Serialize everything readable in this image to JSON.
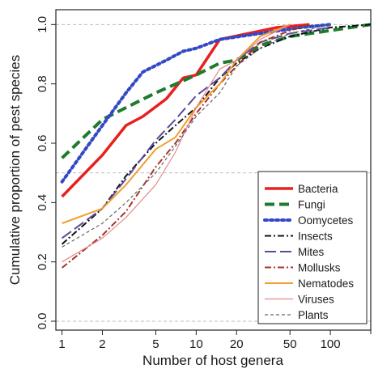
{
  "chart_data": {
    "type": "line",
    "xlabel": "Number of host genera",
    "ylabel": "Cumulative proportion of pest species",
    "x_scale": "log",
    "xlim": [
      0.9,
      200
    ],
    "ylim": [
      -0.03,
      1.05
    ],
    "x_ticks": [
      1,
      2,
      5,
      10,
      20,
      50,
      100
    ],
    "x_tick_labels": [
      "1",
      "2",
      "5",
      "10",
      "20",
      "50",
      "100"
    ],
    "y_ticks": [
      0.0,
      0.2,
      0.4,
      0.6,
      0.8,
      1.0
    ],
    "y_tick_labels": [
      "0.0",
      "0.2",
      "0.4",
      "0.6",
      "0.8",
      "1.0"
    ],
    "reference_lines_y": [
      0.0,
      0.5,
      1.0
    ],
    "legend_position": "bottom-right",
    "series": [
      {
        "name": "Bacteria",
        "color": "#e8201e",
        "width": 3.5,
        "dash": "",
        "points": [
          [
            1,
            0.42
          ],
          [
            2,
            0.56
          ],
          [
            3,
            0.66
          ],
          [
            4,
            0.69
          ],
          [
            6,
            0.75
          ],
          [
            8,
            0.82
          ],
          [
            10,
            0.83
          ],
          [
            15,
            0.95
          ],
          [
            40,
            0.99
          ],
          [
            70,
            1.0
          ]
        ]
      },
      {
        "name": "Fungi",
        "color": "#1e7a2e",
        "width": 4,
        "dash": "12,6",
        "points": [
          [
            1,
            0.55
          ],
          [
            2,
            0.68
          ],
          [
            3,
            0.72
          ],
          [
            5,
            0.77
          ],
          [
            10,
            0.83
          ],
          [
            15,
            0.87
          ],
          [
            20,
            0.88
          ],
          [
            30,
            0.93
          ],
          [
            50,
            0.96
          ],
          [
            100,
            0.98
          ],
          [
            200,
            1.0
          ]
        ]
      },
      {
        "name": "Oomycetes",
        "color": "#3348c4",
        "width": 4,
        "dash": "3,4",
        "points": [
          [
            1,
            0.47
          ],
          [
            2,
            0.66
          ],
          [
            3,
            0.77
          ],
          [
            4,
            0.84
          ],
          [
            6,
            0.88
          ],
          [
            8,
            0.91
          ],
          [
            10,
            0.92
          ],
          [
            15,
            0.95
          ],
          [
            30,
            0.97
          ],
          [
            60,
            0.99
          ],
          [
            100,
            1.0
          ]
        ]
      },
      {
        "name": "Insects",
        "color": "#111111",
        "width": 2,
        "dash": "8,3,2,3",
        "points": [
          [
            1,
            0.26
          ],
          [
            2,
            0.38
          ],
          [
            3,
            0.49
          ],
          [
            5,
            0.6
          ],
          [
            7,
            0.66
          ],
          [
            10,
            0.72
          ],
          [
            15,
            0.82
          ],
          [
            20,
            0.87
          ],
          [
            30,
            0.92
          ],
          [
            50,
            0.96
          ],
          [
            100,
            0.99
          ],
          [
            200,
            1.0
          ]
        ]
      },
      {
        "name": "Mites",
        "color": "#5a4b9c",
        "width": 2,
        "dash": "14,5",
        "points": [
          [
            1,
            0.28
          ],
          [
            2,
            0.38
          ],
          [
            3,
            0.48
          ],
          [
            5,
            0.61
          ],
          [
            7,
            0.68
          ],
          [
            10,
            0.76
          ],
          [
            15,
            0.82
          ],
          [
            20,
            0.88
          ],
          [
            30,
            0.94
          ],
          [
            50,
            0.97
          ],
          [
            100,
            0.99
          ]
        ]
      },
      {
        "name": "Mollusks",
        "color": "#a8342a",
        "width": 2,
        "dash": "8,3,2,3",
        "points": [
          [
            1,
            0.18
          ],
          [
            2,
            0.29
          ],
          [
            3,
            0.37
          ],
          [
            5,
            0.52
          ],
          [
            7,
            0.6
          ],
          [
            10,
            0.7
          ],
          [
            15,
            0.8
          ],
          [
            20,
            0.86
          ],
          [
            30,
            0.94
          ],
          [
            50,
            0.98
          ],
          [
            70,
            1.0
          ]
        ]
      },
      {
        "name": "Nematodes",
        "color": "#f0a030",
        "width": 2,
        "dash": "",
        "points": [
          [
            1,
            0.33
          ],
          [
            2,
            0.38
          ],
          [
            3,
            0.46
          ],
          [
            5,
            0.58
          ],
          [
            7,
            0.62
          ],
          [
            10,
            0.72
          ],
          [
            15,
            0.8
          ],
          [
            20,
            0.88
          ],
          [
            30,
            0.96
          ],
          [
            50,
            1.0
          ]
        ]
      },
      {
        "name": "Viruses",
        "color": "#e58a8a",
        "width": 1.2,
        "dash": "",
        "points": [
          [
            1,
            0.2
          ],
          [
            2,
            0.28
          ],
          [
            3,
            0.35
          ],
          [
            5,
            0.46
          ],
          [
            7,
            0.57
          ],
          [
            10,
            0.72
          ],
          [
            15,
            0.85
          ],
          [
            20,
            0.88
          ],
          [
            30,
            0.95
          ],
          [
            50,
            1.0
          ]
        ]
      },
      {
        "name": "Plants",
        "color": "#666666",
        "width": 1.2,
        "dash": "4,3",
        "points": [
          [
            1,
            0.25
          ],
          [
            2,
            0.33
          ],
          [
            3,
            0.4
          ],
          [
            5,
            0.5
          ],
          [
            7,
            0.59
          ],
          [
            10,
            0.69
          ],
          [
            15,
            0.77
          ],
          [
            20,
            0.86
          ],
          [
            30,
            0.92
          ],
          [
            50,
            0.97
          ],
          [
            100,
            1.0
          ]
        ]
      }
    ]
  }
}
